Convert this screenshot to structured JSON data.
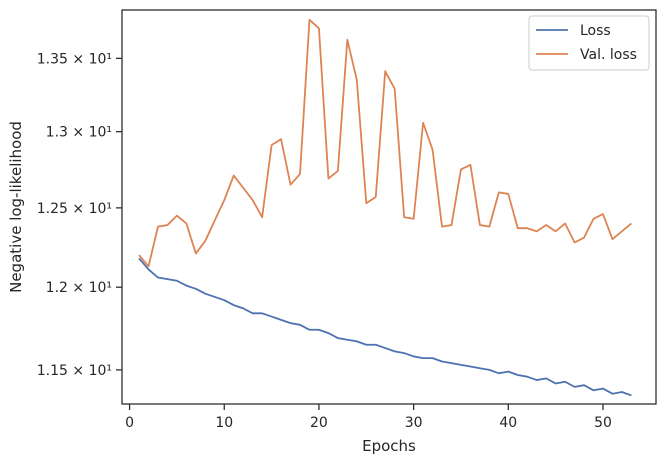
{
  "chart_data": {
    "type": "line",
    "xlabel": "Epochs",
    "ylabel": "Negative log-likelihood",
    "xlim": [
      -0.8,
      55.6
    ],
    "ylim": [
      11.3,
      13.84
    ],
    "y_scale": "log",
    "grid": false,
    "legend_position": "top-right",
    "x_ticks": [
      0,
      10,
      20,
      30,
      40,
      50
    ],
    "x_tick_labels": [
      "0",
      "10",
      "20",
      "30",
      "40",
      "50"
    ],
    "y_ticks": [
      11.5,
      12.0,
      12.5,
      13.0,
      13.5
    ],
    "y_tick_labels": [
      "1.15 × 10¹",
      "1.2 × 10¹",
      "1.25 × 10¹",
      "1.3 × 10¹",
      "1.35 × 10¹"
    ],
    "x": [
      1,
      2,
      3,
      4,
      5,
      6,
      7,
      8,
      9,
      10,
      11,
      12,
      13,
      14,
      15,
      16,
      17,
      18,
      19,
      20,
      21,
      22,
      23,
      24,
      25,
      26,
      27,
      28,
      29,
      30,
      31,
      32,
      33,
      34,
      35,
      36,
      37,
      38,
      39,
      40,
      41,
      42,
      43,
      44,
      45,
      46,
      47,
      48,
      49,
      50,
      51,
      52,
      53
    ],
    "series": [
      {
        "name": "Loss",
        "color": "#4c72b0",
        "values": [
          12.18,
          12.11,
          12.06,
          12.05,
          12.04,
          12.01,
          11.99,
          11.96,
          11.94,
          11.92,
          11.89,
          11.87,
          11.84,
          11.84,
          11.82,
          11.8,
          11.78,
          11.77,
          11.74,
          11.74,
          11.72,
          11.69,
          11.68,
          11.67,
          11.65,
          11.65,
          11.63,
          11.61,
          11.6,
          11.58,
          11.57,
          11.57,
          11.55,
          11.54,
          11.53,
          11.52,
          11.51,
          11.5,
          11.48,
          11.49,
          11.47,
          11.46,
          11.44,
          11.45,
          11.42,
          11.43,
          11.4,
          11.41,
          11.38,
          11.39,
          11.36,
          11.37,
          11.35
        ]
      },
      {
        "name": "Val. loss",
        "color": "#dd8452",
        "values": [
          12.2,
          12.13,
          12.38,
          12.39,
          12.45,
          12.4,
          12.21,
          12.29,
          12.42,
          12.55,
          12.71,
          12.63,
          12.55,
          12.44,
          12.91,
          12.95,
          12.65,
          12.72,
          13.77,
          13.71,
          12.69,
          12.74,
          13.63,
          13.35,
          12.53,
          12.57,
          13.41,
          13.29,
          12.44,
          12.43,
          13.06,
          12.88,
          12.38,
          12.39,
          12.75,
          12.78,
          12.39,
          12.38,
          12.6,
          12.59,
          12.37,
          12.37,
          12.35,
          12.39,
          12.35,
          12.4,
          12.28,
          12.31,
          12.43,
          12.46,
          12.3,
          12.35,
          12.4
        ]
      }
    ]
  }
}
